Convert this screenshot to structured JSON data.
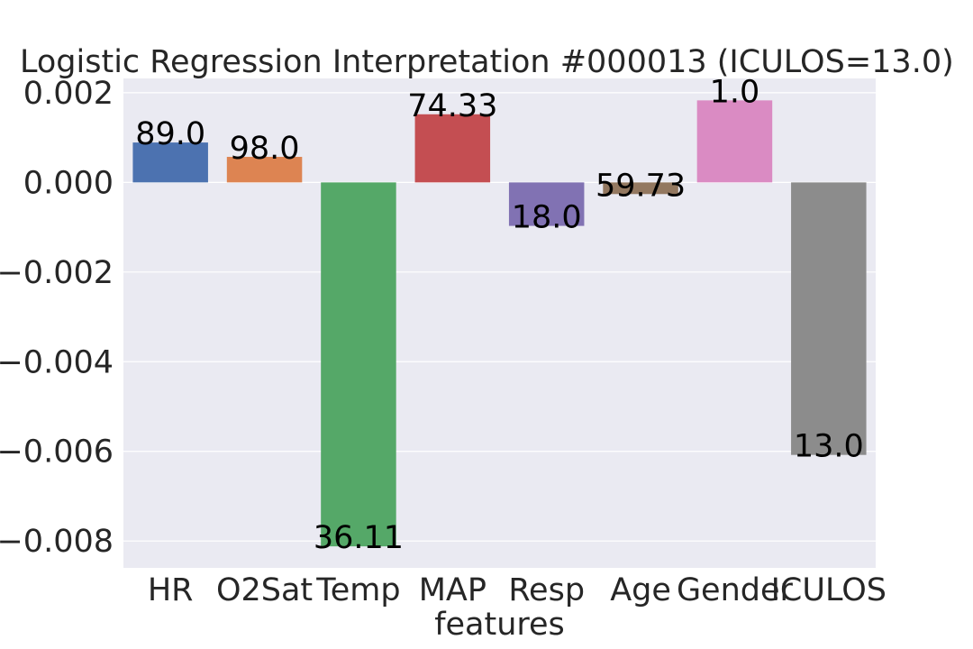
{
  "chart_data": {
    "type": "bar",
    "title": "Logistic Regression Interpretation #000013 (ICULOS=13.0)",
    "xlabel": "features",
    "ylabel": "",
    "categories": [
      "HR",
      "O2Sat",
      "Temp",
      "MAP",
      "Resp",
      "Age",
      "Gender",
      "ICULOS"
    ],
    "values": [
      0.00089,
      0.00057,
      -0.00812,
      0.00152,
      -0.00097,
      -0.00026,
      0.00183,
      -0.00608
    ],
    "data_labels": [
      "89.0",
      "98.0",
      "36.11",
      "74.33",
      "18.0",
      "59.73",
      "1.0",
      "13.0"
    ],
    "colors": [
      "#4c72b0",
      "#dd8452",
      "#55a868",
      "#c44e52",
      "#8172b3",
      "#937860",
      "#da8bc3",
      "#8c8c8c"
    ],
    "yticks": [
      0.002,
      0.0,
      -0.002,
      -0.004,
      -0.006,
      -0.008
    ],
    "ytick_labels": [
      "0.002",
      "0.000",
      "−0.002",
      "−0.004",
      "−0.006",
      "−0.008"
    ],
    "ylim": [
      -0.0086,
      0.00232
    ],
    "grid": true,
    "background": "#eaeaf2"
  }
}
